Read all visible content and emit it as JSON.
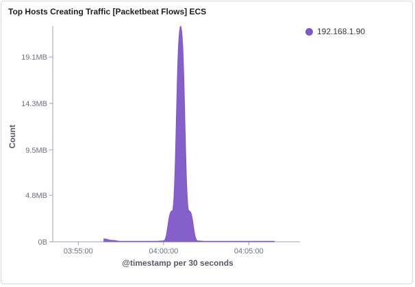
{
  "panel": {
    "title": "Top Hosts Creating Traffic [Packetbeat Flows] ECS"
  },
  "colors": {
    "series": "#7e57c8",
    "axis": "#98a2b3",
    "text": "#69707d"
  },
  "chart_data": {
    "type": "area",
    "title": "Top Hosts Creating Traffic [Packetbeat Flows] ECS",
    "xlabel": "@timestamp per 30 seconds",
    "ylabel": "Count",
    "x_ticks": [
      "03:55:00",
      "04:00:00",
      "04:05:00"
    ],
    "y_ticks": [
      "0B",
      "4.8MB",
      "9.5MB",
      "14.3MB",
      "19.1MB"
    ],
    "y_tick_values": [
      0,
      4.8,
      9.5,
      14.3,
      19.1
    ],
    "y_unit": "MB",
    "ylim": [
      0,
      22.3
    ],
    "xlim": [
      "03:53:30",
      "04:08:00"
    ],
    "legend_position": "top-right",
    "series": [
      {
        "name": "192.168.1.90",
        "x": [
          "03:56:30",
          "03:57:00",
          "03:57:30",
          "03:58:00",
          "03:58:30",
          "03:59:00",
          "03:59:30",
          "04:00:00",
          "04:00:30",
          "04:01:00",
          "04:01:30",
          "04:02:00",
          "04:02:30",
          "04:03:00",
          "04:03:30",
          "04:04:00",
          "04:04:30",
          "04:05:00",
          "04:05:30",
          "04:06:00",
          "04:06:30"
        ],
        "values": [
          0.3,
          0.15,
          0.05,
          0.05,
          0.05,
          0.05,
          0.05,
          0.1,
          3.2,
          22.3,
          3.2,
          0.1,
          0.05,
          0.05,
          0.05,
          0.05,
          0.05,
          0.05,
          0.05,
          0.05,
          0.05
        ]
      }
    ]
  }
}
